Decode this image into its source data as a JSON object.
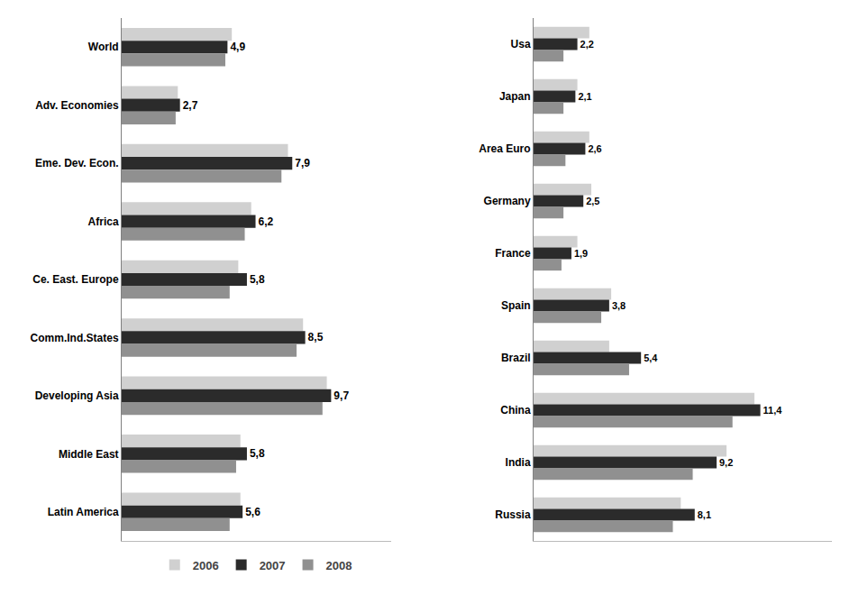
{
  "chart_data": [
    {
      "type": "bar",
      "orientation": "horizontal",
      "grid": false,
      "tick_labels": "y",
      "data_labels": true,
      "legend": "bottom",
      "categories": [
        "World",
        "Adv. Economies",
        "Eme. Dev. Econ.",
        "Africa",
        "Ce. East. Europe",
        "Comm.Ind.States",
        "Developing Asia",
        "Middle East",
        "Latin America"
      ],
      "xlim": [
        0,
        12.5
      ],
      "series": [
        {
          "name": "2006",
          "color": "#d0d0d0",
          "values": [
            5.1,
            2.6,
            7.7,
            6.0,
            5.4,
            8.4,
            9.5,
            5.5,
            5.5
          ]
        },
        {
          "name": "2007",
          "color": "#2b2b2b",
          "values": [
            4.9,
            2.7,
            7.9,
            6.2,
            5.8,
            8.5,
            9.7,
            5.8,
            5.6
          ],
          "value_labels": [
            "4,9",
            "2,7",
            "7,9",
            "6,2",
            "5,8",
            "8,5",
            "9,7",
            "5,8",
            "5,6"
          ]
        },
        {
          "name": "2008",
          "color": "#909090",
          "values": [
            4.8,
            2.5,
            7.4,
            5.7,
            5.0,
            8.1,
            9.3,
            5.3,
            5.0
          ]
        }
      ]
    },
    {
      "type": "bar",
      "orientation": "horizontal",
      "grid": false,
      "tick_labels": "y",
      "data_labels": true,
      "categories": [
        "Usa",
        "Japan",
        "Area Euro",
        "Germany",
        "France",
        "Spain",
        "Brazil",
        "China",
        "India",
        "Russia"
      ],
      "xlim": [
        0,
        15.0
      ],
      "series": [
        {
          "name": "2006",
          "color": "#d0d0d0",
          "values": [
            2.8,
            2.2,
            2.8,
            2.9,
            2.2,
            3.9,
            3.8,
            11.1,
            9.7,
            7.4
          ]
        },
        {
          "name": "2007",
          "color": "#2b2b2b",
          "values": [
            2.2,
            2.1,
            2.6,
            2.5,
            1.9,
            3.8,
            5.4,
            11.4,
            9.2,
            8.1
          ],
          "value_labels": [
            "2,2",
            "2,1",
            "2,6",
            "2,5",
            "1,9",
            "3,8",
            "5,4",
            "11,4",
            "9,2",
            "8,1"
          ]
        },
        {
          "name": "2008",
          "color": "#909090",
          "values": [
            1.5,
            1.5,
            1.6,
            1.5,
            1.4,
            3.4,
            4.8,
            10.0,
            8.0,
            7.0
          ]
        }
      ]
    }
  ]
}
